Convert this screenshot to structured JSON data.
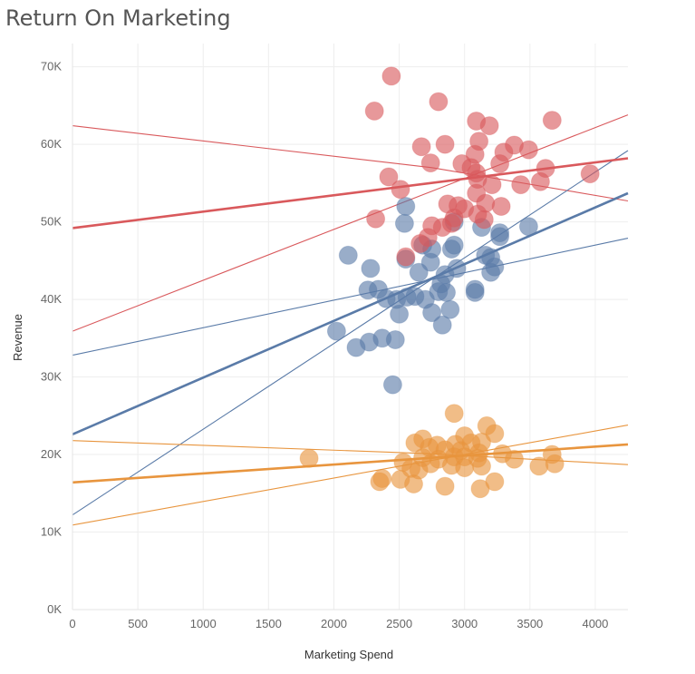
{
  "title": "Return On Marketing",
  "chart_data": {
    "type": "scatter",
    "title": "Return On Marketing",
    "xlabel": "Marketing Spend",
    "ylabel": "Revenue",
    "xlim": [
      0,
      4250
    ],
    "ylim": [
      0,
      73000
    ],
    "x_ticks": [
      0,
      500,
      1000,
      1500,
      2000,
      2500,
      3000,
      3500,
      4000
    ],
    "y_ticks": [
      0,
      10000,
      20000,
      30000,
      40000,
      50000,
      60000,
      70000
    ],
    "y_tick_labels": [
      "0K",
      "10K",
      "20K",
      "30K",
      "40K",
      "50K",
      "60K",
      "70K"
    ],
    "grid": true,
    "legend": "none",
    "series": [
      {
        "color": "#d9595c",
        "points": [
          [
            2440,
            68800
          ],
          [
            2800,
            65500
          ],
          [
            2310,
            64300
          ],
          [
            3090,
            63000
          ],
          [
            3670,
            63100
          ],
          [
            3190,
            62400
          ],
          [
            2670,
            59700
          ],
          [
            2850,
            60000
          ],
          [
            3110,
            60400
          ],
          [
            3380,
            59900
          ],
          [
            3490,
            59300
          ],
          [
            3300,
            59000
          ],
          [
            3080,
            58700
          ],
          [
            2740,
            57600
          ],
          [
            2980,
            57500
          ],
          [
            3270,
            57500
          ],
          [
            3620,
            56900
          ],
          [
            3050,
            57000
          ],
          [
            3090,
            56300
          ],
          [
            3100,
            55500
          ],
          [
            2420,
            55800
          ],
          [
            3580,
            55200
          ],
          [
            3960,
            56200
          ],
          [
            3210,
            54800
          ],
          [
            3430,
            54800
          ],
          [
            2510,
            54200
          ],
          [
            3090,
            53700
          ],
          [
            3160,
            52400
          ],
          [
            3280,
            52000
          ],
          [
            2870,
            52300
          ],
          [
            2950,
            52100
          ],
          [
            3000,
            51700
          ],
          [
            3100,
            51000
          ],
          [
            2920,
            50500
          ],
          [
            2320,
            50400
          ],
          [
            3150,
            50300
          ],
          [
            2750,
            49500
          ],
          [
            2830,
            49300
          ],
          [
            2900,
            49800
          ],
          [
            2720,
            48000
          ],
          [
            2660,
            47200
          ],
          [
            2550,
            45500
          ]
        ],
        "fit_line": [
          [
            0,
            49200
          ],
          [
            4250,
            58200
          ]
        ],
        "upper_band": [
          [
            0,
            62400
          ],
          [
            2750,
            57000
          ],
          [
            4250,
            52700
          ]
        ],
        "lower_band": [
          [
            0,
            35900
          ],
          [
            4250,
            63800
          ]
        ]
      },
      {
        "color": "#5a7ba8",
        "points": [
          [
            2550,
            52000
          ],
          [
            2540,
            49800
          ],
          [
            2920,
            50000
          ],
          [
            3130,
            49300
          ],
          [
            3490,
            49400
          ],
          [
            3270,
            48600
          ],
          [
            3270,
            48100
          ],
          [
            2680,
            47000
          ],
          [
            2920,
            47000
          ],
          [
            2900,
            46500
          ],
          [
            2750,
            46500
          ],
          [
            2110,
            45700
          ],
          [
            2550,
            45200
          ],
          [
            2740,
            44800
          ],
          [
            3160,
            45700
          ],
          [
            3200,
            45400
          ],
          [
            3230,
            44200
          ],
          [
            2280,
            44000
          ],
          [
            2650,
            43500
          ],
          [
            2940,
            44000
          ],
          [
            2850,
            43200
          ],
          [
            3200,
            43500
          ],
          [
            2820,
            42000
          ],
          [
            2340,
            41300
          ],
          [
            2260,
            41200
          ],
          [
            3080,
            41300
          ],
          [
            3080,
            40900
          ],
          [
            2800,
            41000
          ],
          [
            2860,
            40900
          ],
          [
            2400,
            40100
          ],
          [
            2480,
            40000
          ],
          [
            2560,
            40300
          ],
          [
            2620,
            40400
          ],
          [
            2700,
            40000
          ],
          [
            2890,
            38700
          ],
          [
            2750,
            38300
          ],
          [
            2500,
            38100
          ],
          [
            2830,
            36700
          ],
          [
            2020,
            35900
          ],
          [
            2370,
            35000
          ],
          [
            2270,
            34500
          ],
          [
            2470,
            34800
          ],
          [
            2170,
            33800
          ],
          [
            2450,
            29000
          ]
        ],
        "fit_line": [
          [
            0,
            22600
          ],
          [
            4250,
            53700
          ]
        ],
        "upper_band": [
          [
            0,
            32800
          ],
          [
            4250,
            47900
          ]
        ],
        "lower_band": [
          [
            0,
            12200
          ],
          [
            4250,
            59200
          ]
        ]
      },
      {
        "color": "#e8953e",
        "points": [
          [
            2920,
            25300
          ],
          [
            3170,
            23700
          ],
          [
            3230,
            22700
          ],
          [
            2680,
            22000
          ],
          [
            3000,
            22400
          ],
          [
            2620,
            21500
          ],
          [
            2790,
            21200
          ],
          [
            2930,
            21300
          ],
          [
            3050,
            21500
          ],
          [
            3130,
            21600
          ],
          [
            2730,
            20900
          ],
          [
            2850,
            20600
          ],
          [
            2970,
            20500
          ],
          [
            3110,
            20200
          ],
          [
            3290,
            20100
          ],
          [
            3380,
            19400
          ],
          [
            3670,
            20000
          ],
          [
            1810,
            19500
          ],
          [
            2680,
            19600
          ],
          [
            2800,
            19400
          ],
          [
            2920,
            19700
          ],
          [
            3000,
            19700
          ],
          [
            3100,
            19500
          ],
          [
            2530,
            19000
          ],
          [
            2740,
            18800
          ],
          [
            2900,
            18600
          ],
          [
            3000,
            18300
          ],
          [
            3130,
            18500
          ],
          [
            3570,
            18500
          ],
          [
            3690,
            18800
          ],
          [
            2590,
            18200
          ],
          [
            2650,
            18000
          ],
          [
            2350,
            16500
          ],
          [
            2370,
            16900
          ],
          [
            2510,
            16800
          ],
          [
            2610,
            16200
          ],
          [
            2850,
            15900
          ],
          [
            3120,
            15600
          ],
          [
            3230,
            16500
          ]
        ],
        "fit_line": [
          [
            0,
            16400
          ],
          [
            4250,
            21300
          ]
        ],
        "upper_band": [
          [
            0,
            21800
          ],
          [
            2750,
            20100
          ],
          [
            4250,
            18700
          ]
        ],
        "lower_band": [
          [
            0,
            10900
          ],
          [
            4250,
            23800
          ]
        ]
      }
    ]
  }
}
